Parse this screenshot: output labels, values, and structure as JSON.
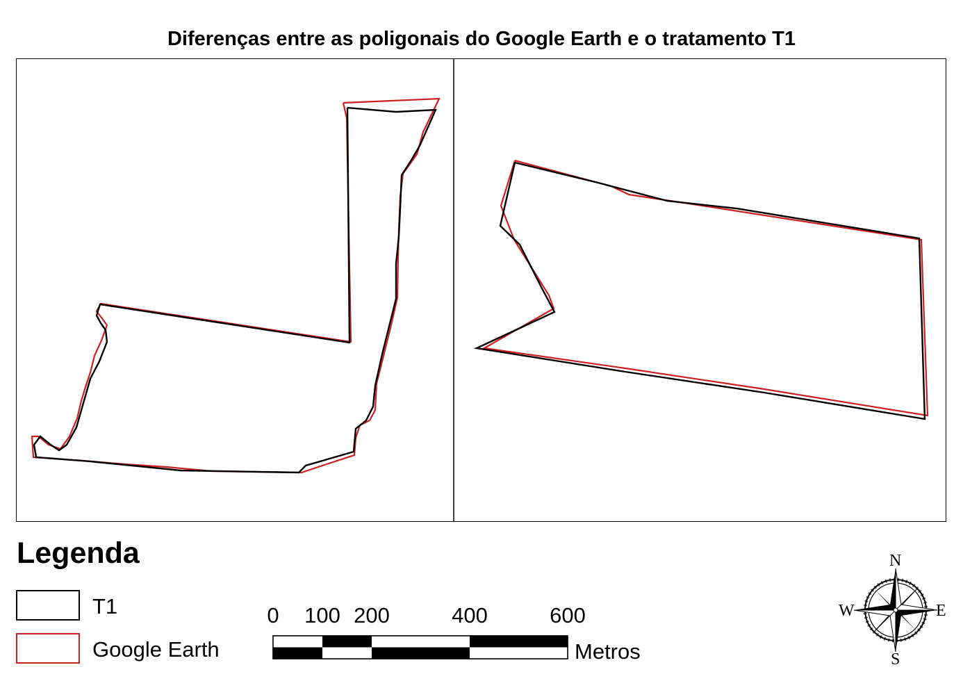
{
  "title": "Diferenças entre as poligonais do Google Earth e o tratamento T1",
  "colors": {
    "t1": "#000000",
    "google_earth": "#cc1f1f",
    "frame": "#000000"
  },
  "legend": {
    "title": "Legenda",
    "items": [
      {
        "label": "T1",
        "color": "#000000"
      },
      {
        "label": "Google Earth",
        "color": "#cc1f1f"
      }
    ]
  },
  "scale_bar": {
    "ticks": [
      "0",
      "100",
      "200",
      "400",
      "600"
    ],
    "unit": "Metros"
  },
  "north_arrow": {
    "n": "N",
    "s": "S",
    "e": "E",
    "w": "W"
  }
}
